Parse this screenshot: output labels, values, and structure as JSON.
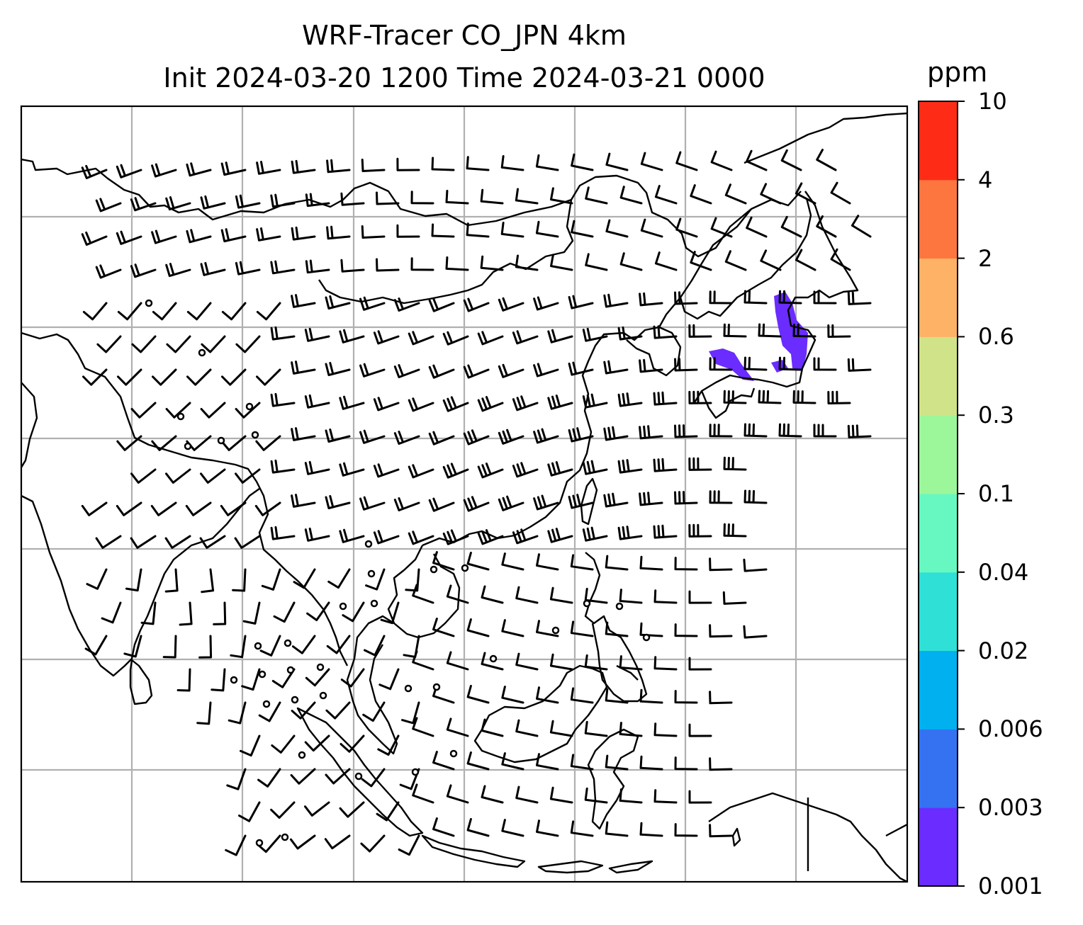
{
  "title": {
    "line1": "WRF-Tracer CO_JPN 4km",
    "line2": "Init 2024-03-20 1200 Time 2024-03-21 0000"
  },
  "colorbar": {
    "unit": "ppm",
    "levels": [
      "0.001",
      "0.003",
      "0.006",
      "0.02",
      "0.04",
      "0.1",
      "0.3",
      "0.6",
      "2",
      "4",
      "10"
    ],
    "colors": [
      "#6a2cff",
      "#3472f2",
      "#00b0ef",
      "#2ee0d6",
      "#66f8c0",
      "#9cf79a",
      "#d0e388",
      "#fdb266",
      "#fe763f",
      "#fe2c16"
    ]
  },
  "map": {
    "land_color": "#000000",
    "grid_color": "#b0b0b0",
    "tracer_color": "#6a2cff"
  }
}
